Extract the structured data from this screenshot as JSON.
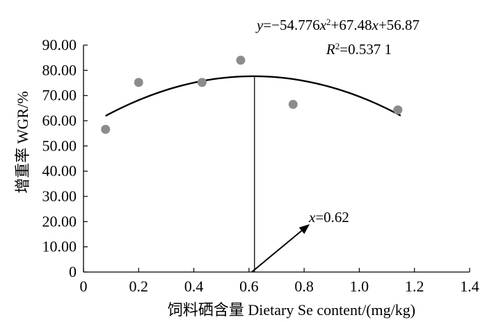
{
  "chart_data": {
    "type": "scatter",
    "xlabel": "饲料硒含量  Dietary Se content/(mg/kg)",
    "ylabel": "增重率  WGR/%",
    "xlim": [
      0,
      1.4
    ],
    "ylim": [
      0,
      90
    ],
    "x_ticks": [
      "0",
      "0.2",
      "0.4",
      "0.6",
      "0.8",
      "1.0",
      "1.2",
      "1.4"
    ],
    "y_ticks": [
      "0",
      "10.00",
      "20.00",
      "30.00",
      "40.00",
      "50.00",
      "60.00",
      "70.00",
      "80.00",
      "90.00"
    ],
    "grid": false,
    "series": [
      {
        "points": [
          {
            "x": 0.08,
            "y": 56.6
          },
          {
            "x": 0.2,
            "y": 75.2
          },
          {
            "x": 0.43,
            "y": 75.2
          },
          {
            "x": 0.57,
            "y": 84.0
          },
          {
            "x": 0.76,
            "y": 66.5
          },
          {
            "x": 1.14,
            "y": 64.3
          }
        ],
        "color": "#8c8c8c"
      }
    ],
    "fit": {
      "equation": "y=−54.776x²+67.48x+56.87",
      "r_squared": "R²=0.537 1",
      "coefficients": {
        "a": -54.776,
        "b": 67.48,
        "c": 56.87
      },
      "x_range": [
        0.08,
        1.15
      ],
      "color": "#000000"
    },
    "vertex": {
      "x": 0.62,
      "label": "x=0.62",
      "arrow_from": [
        0.61,
        0
      ],
      "arrow_to": [
        0.82,
        19
      ]
    },
    "annotations": [
      "y=−54.776x²+67.48x+56.87",
      "R²=0.537 1",
      "x=0.62"
    ]
  }
}
